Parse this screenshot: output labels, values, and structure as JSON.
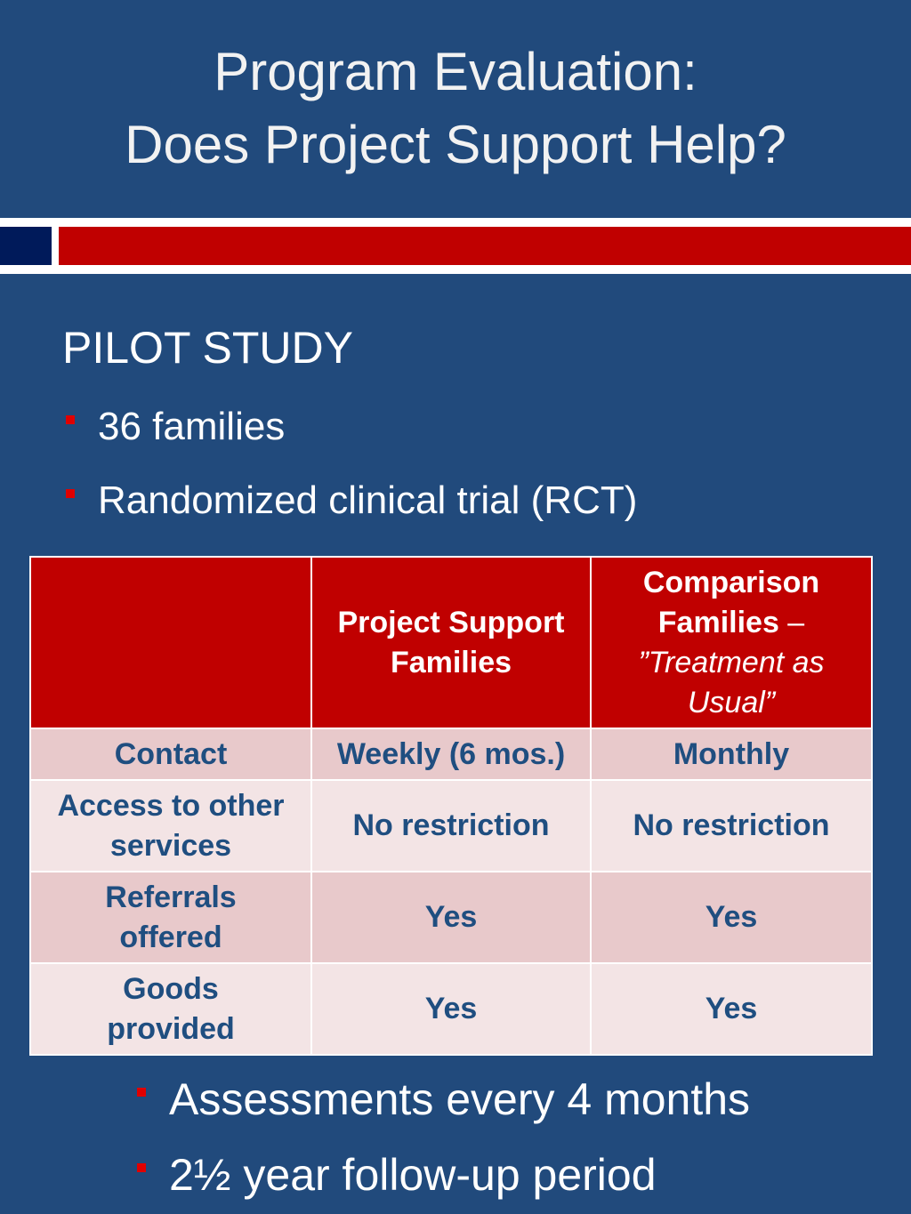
{
  "title": {
    "line1": "Program Evaluation:",
    "line2": "Does Project Support Help?"
  },
  "heading": "PILOT STUDY",
  "bullets_top": [
    "36 families",
    "Randomized clinical trial (RCT)"
  ],
  "table": {
    "header": {
      "col0": "",
      "col1": "Project Support Families",
      "col2_bold": "Comparison Families",
      "col2_dash": " –",
      "col2_italic": "”Treatment as Usual”"
    },
    "rows": [
      {
        "label": "Contact",
        "ps": "Weekly (6 mos.)",
        "comp": "Monthly"
      },
      {
        "label": "Access to other services",
        "ps": "No restriction",
        "comp": "No restriction"
      },
      {
        "label": "Referrals offered",
        "ps": "Yes",
        "comp": "Yes"
      },
      {
        "label": "Goods provided",
        "ps": "Yes",
        "comp": "Yes"
      }
    ]
  },
  "bullets_bottom": [
    "Assessments every 4 months",
    "2½ year follow-up period"
  ],
  "colors": {
    "background": "#214a7c",
    "accent_red": "#c00000",
    "navy": "#001a5a",
    "table_text": "#1f4e80"
  }
}
